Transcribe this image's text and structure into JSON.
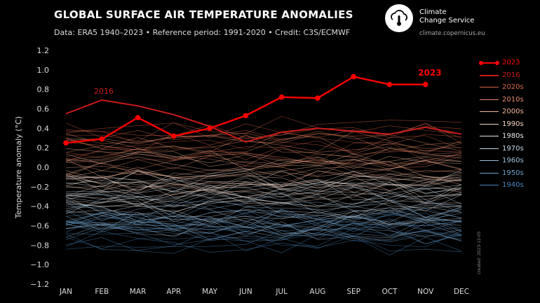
{
  "header": {
    "title": "GLOBAL SURFACE AIR TEMPERATURE ANOMALIES",
    "subtitle": "Data: ERA5 1940–2023 • Reference period: 1991-2020 • Credit: C3S/ECMWF"
  },
  "logo": {
    "line1": "Climate",
    "line2": "Change Service",
    "url": "climate.copernicus.eu",
    "icon": "thermometer-cloud-icon"
  },
  "credit_vertical": "created: 2023-12-05",
  "colors": {
    "background": "#000000",
    "year_2023": "#ff0000",
    "year_2016": "#cc1a1a",
    "bg_lines": "#9a9a9a"
  },
  "chart_data": {
    "type": "line",
    "title": "GLOBAL SURFACE AIR TEMPERATURE ANOMALIES",
    "xlabel": "",
    "ylabel": "Temperature anomaly (°C)",
    "categories": [
      "JAN",
      "FEB",
      "MAR",
      "APR",
      "MAY",
      "JUN",
      "JUL",
      "AUG",
      "SEP",
      "OCT",
      "NOV",
      "DEC"
    ],
    "ylim": [
      -1.2,
      1.2
    ],
    "yticks": [
      "1.2",
      "1.0",
      "0.8",
      "0.6",
      "0.4",
      "0.2",
      "0.0",
      "−0.2",
      "−0.4",
      "−0.6",
      "−0.8",
      "−1.0",
      "−1.2"
    ],
    "grid": false,
    "legend_position": "right",
    "series": [
      {
        "name": "2023",
        "values": [
          0.25,
          0.29,
          0.51,
          0.32,
          0.4,
          0.53,
          0.72,
          0.71,
          0.93,
          0.85,
          0.85,
          null
        ],
        "color": "#ff0000",
        "markers": true
      },
      {
        "name": "2016",
        "values": [
          0.55,
          0.69,
          0.63,
          0.54,
          0.42,
          0.26,
          0.36,
          0.4,
          0.37,
          0.34,
          0.41,
          0.34
        ],
        "color": "#cc1a1a",
        "markers": false
      }
    ],
    "decade_bands": [
      {
        "name": "2020s",
        "color": "#d9654a",
        "center": 0.28
      },
      {
        "name": "2010s",
        "color": "#e88c6b",
        "center": 0.12
      },
      {
        "name": "2000s",
        "color": "#f2b497",
        "center": -0.02
      },
      {
        "name": "1990s",
        "color": "#f5d4c2",
        "center": -0.14
      },
      {
        "name": "1980s",
        "color": "#e6e6e6",
        "center": -0.25
      },
      {
        "name": "1970s",
        "color": "#c8d8e6",
        "center": -0.4
      },
      {
        "name": "1960s",
        "color": "#9dc0dd",
        "center": -0.5
      },
      {
        "name": "1950s",
        "color": "#6ea3cf",
        "center": -0.56
      },
      {
        "name": "1940s",
        "color": "#4a86be",
        "center": -0.65
      }
    ],
    "annotations": [
      {
        "text": "2016",
        "color": "#cc1a1a"
      },
      {
        "text": "2023",
        "color": "#ff0000"
      }
    ]
  },
  "legend": {
    "items": [
      {
        "label": "2023",
        "color": "#ff0000",
        "style": "marker"
      },
      {
        "label": "2016",
        "color": "#cc1a1a",
        "style": "thick"
      },
      {
        "label": "2020s",
        "color": "#d9654a",
        "style": "thin"
      },
      {
        "label": "2010s",
        "color": "#e88c6b",
        "style": "thin"
      },
      {
        "label": "2000s",
        "color": "#f2b497",
        "style": "thin"
      },
      {
        "label": "1990s",
        "color": "#f5d4c2",
        "style": "thin"
      },
      {
        "label": "1980s",
        "color": "#e6e6e6",
        "style": "thin"
      },
      {
        "label": "1970s",
        "color": "#c8d8e6",
        "style": "thin"
      },
      {
        "label": "1960s",
        "color": "#9dc0dd",
        "style": "thin"
      },
      {
        "label": "1950s",
        "color": "#6ea3cf",
        "style": "thin"
      },
      {
        "label": "1940s",
        "color": "#4a86be",
        "style": "thin"
      }
    ]
  }
}
